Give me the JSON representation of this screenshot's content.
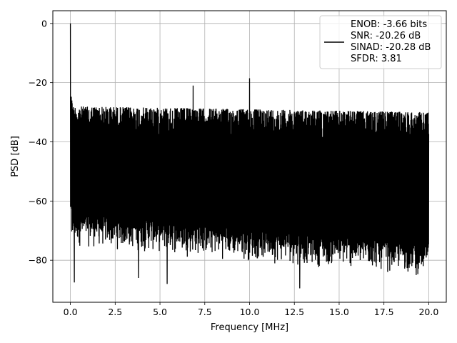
{
  "chart_data": {
    "type": "line",
    "title": "",
    "xlabel": "Frequency [MHz]",
    "ylabel": "PSD [dB]",
    "xlim": [
      -0.98,
      20.98
    ],
    "ylim": [
      -94.2,
      4.3
    ],
    "xticks": [
      0.0,
      2.5,
      5.0,
      7.5,
      10.0,
      12.5,
      15.0,
      17.5,
      20.0
    ],
    "xtick_labels": [
      "0.0",
      "2.5",
      "5.0",
      "7.5",
      "10.0",
      "12.5",
      "15.0",
      "17.5",
      "20.0"
    ],
    "yticks": [
      0,
      -20,
      -40,
      -60,
      -80
    ],
    "ytick_labels": [
      "0",
      "−20",
      "−40",
      "−60",
      "−80"
    ],
    "grid": true,
    "legend": {
      "position": "top-right",
      "entries": [
        "ENOB: -3.66 bits",
        "SNR: -20.26 dB",
        "SINAD: -20.28 dB",
        "SFDR: 3.81"
      ]
    },
    "series": [
      {
        "color": "#000000",
        "noise_band": {
          "x_range": [
            0.0,
            20.0
          ],
          "upper_envelope_db": [
            -28,
            -30
          ],
          "lower_envelope_db": [
            -78,
            -88
          ]
        },
        "peaks": [
          {
            "x": 0.0,
            "y": 0.0
          },
          {
            "x": 6.85,
            "y": -21.0
          },
          {
            "x": 10.0,
            "y": -18.5
          }
        ],
        "dips": [
          {
            "x": 0.22,
            "y": -87.5
          },
          {
            "x": 3.8,
            "y": -86.0
          },
          {
            "x": 5.4,
            "y": -88.0
          },
          {
            "x": 12.8,
            "y": -89.5
          },
          {
            "x": 19.3,
            "y": -85.0
          }
        ]
      }
    ]
  }
}
